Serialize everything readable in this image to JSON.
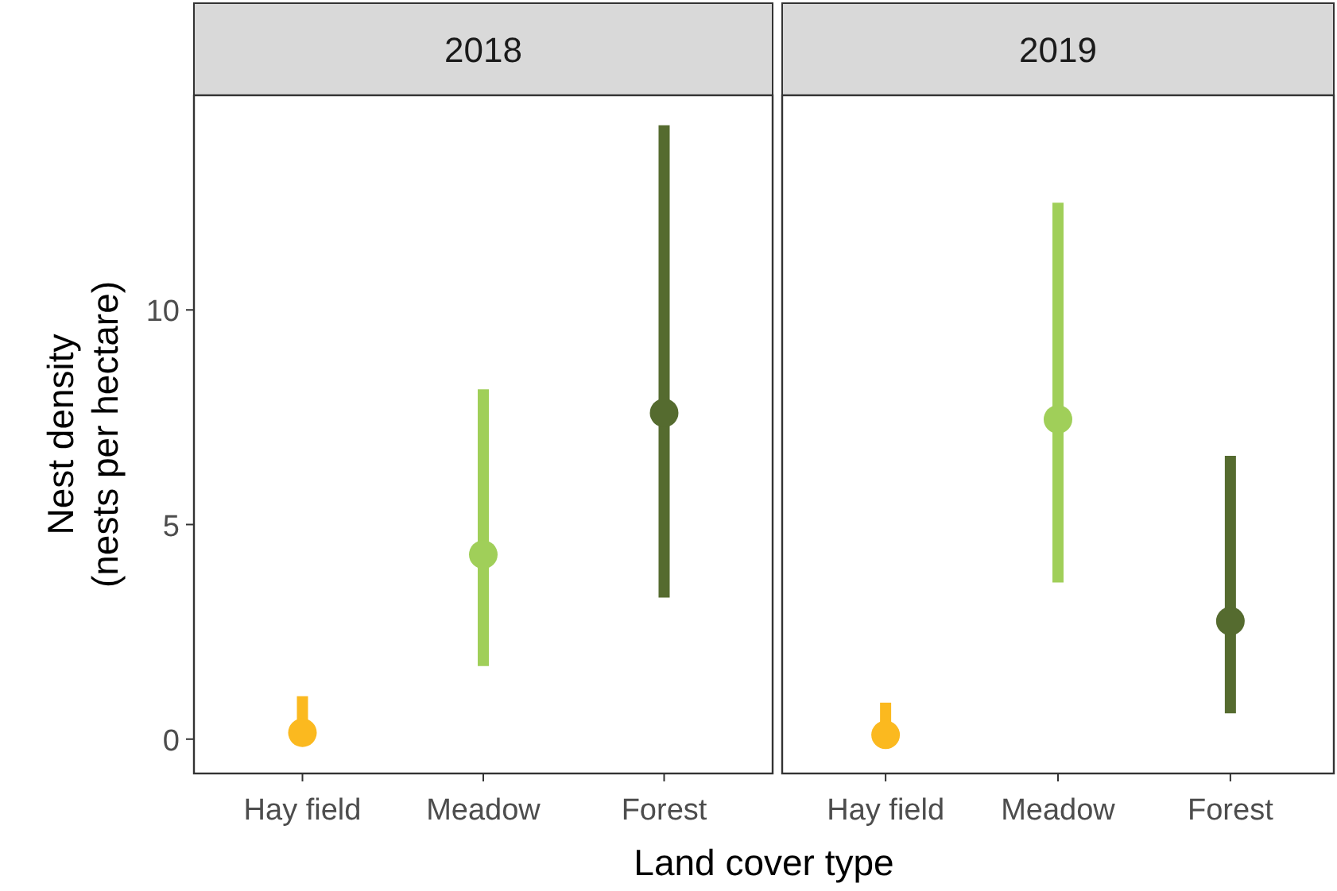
{
  "chart_data": [
    {
      "type": "scatter",
      "title": "2018",
      "ylabel": "Nest density\n(nests per hectare)",
      "xlabel": "Land cover type",
      "categories": [
        "Hay field",
        "Meadow",
        "Forest"
      ],
      "values": [
        0.15,
        4.3,
        7.6
      ],
      "errors": [
        [
          0.15,
          1.0
        ],
        [
          1.7,
          8.15
        ],
        [
          3.3,
          14.3
        ]
      ],
      "colors": [
        "#fbb91f",
        "#a0cf59",
        "#556b2f"
      ],
      "ylim": [
        -0.8,
        15
      ],
      "yticks": [
        0,
        5,
        10
      ],
      "grid": false,
      "marker": "circle"
    },
    {
      "type": "scatter",
      "title": "2019",
      "categories": [
        "Hay field",
        "Meadow",
        "Forest"
      ],
      "values": [
        0.1,
        7.45,
        2.75
      ],
      "errors": [
        [
          0.1,
          0.85
        ],
        [
          3.65,
          12.5
        ],
        [
          0.6,
          6.6
        ]
      ],
      "colors": [
        "#fbb91f",
        "#a0cf59",
        "#556b2f"
      ],
      "ylim": [
        -0.8,
        15
      ],
      "grid": false,
      "marker": "circle",
      "tick_labels": "x"
    }
  ]
}
